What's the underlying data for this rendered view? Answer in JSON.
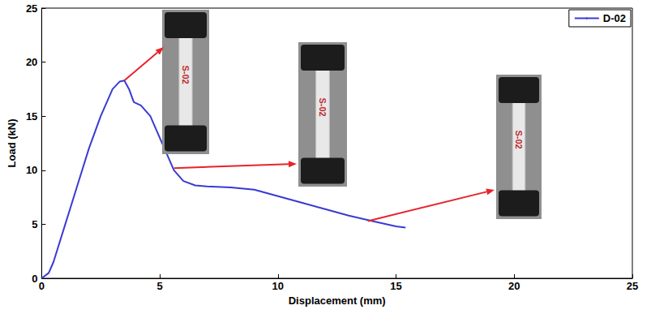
{
  "chart_data": {
    "type": "line",
    "x_label": "Displacement (mm)",
    "y_label": "Load (kN)",
    "x": [
      0,
      0.3,
      0.5,
      1,
      1.5,
      2,
      2.5,
      3,
      3.3,
      3.5,
      3.7,
      3.9,
      4.2,
      4.6,
      5,
      5.3,
      5.6,
      6,
      6.5,
      7,
      8,
      9,
      10,
      11,
      12,
      13,
      14,
      15,
      15.4
    ],
    "series": [
      {
        "name": "D-02",
        "color": "#3a3ad4",
        "values": [
          0,
          0.5,
          1.5,
          5,
          8.5,
          12,
          15,
          17.5,
          18.2,
          18.3,
          17.5,
          16.3,
          16,
          15,
          13,
          11.5,
          10,
          9,
          8.6,
          8.5,
          8.4,
          8.2,
          7.6,
          7,
          6.4,
          5.8,
          5.3,
          4.8,
          4.7
        ]
      }
    ],
    "xlim": [
      0,
      25
    ],
    "ylim": [
      0,
      25
    ],
    "xticks": [
      0,
      5,
      10,
      15,
      20,
      25
    ],
    "yticks": [
      0,
      5,
      10,
      15,
      20,
      25
    ],
    "grid": false,
    "legend": "upper right",
    "annotations": [
      {
        "x": 3.5,
        "y": 18.3,
        "text": "S-02"
      },
      {
        "x": 5.6,
        "y": 10.2,
        "text": "S-02"
      },
      {
        "x": 13.8,
        "y": 5.3,
        "text": "S-02"
      }
    ]
  }
}
